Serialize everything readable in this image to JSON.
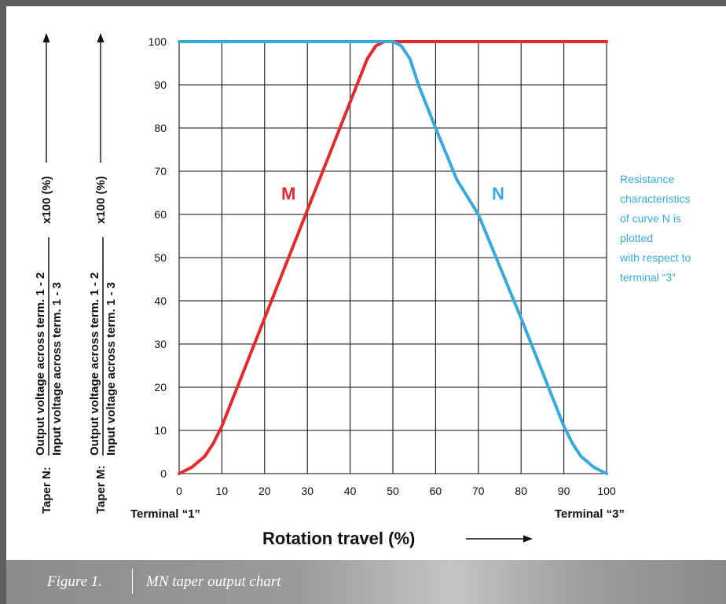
{
  "chart_data": {
    "type": "line",
    "xlim": [
      0,
      100
    ],
    "ylim": [
      0,
      100
    ],
    "xticks": [
      0,
      10,
      20,
      30,
      40,
      50,
      60,
      70,
      80,
      90,
      100
    ],
    "yticks": [
      0,
      10,
      20,
      30,
      40,
      50,
      60,
      70,
      80,
      90,
      100
    ],
    "grid": true,
    "xlabel": "Rotation travel (%)",
    "x_start_label": "Terminal “1”",
    "x_end_label": "Terminal “3”",
    "ylabels": [
      {
        "prefix": "Taper N:",
        "numerator": "Output voltage across term. 1 - 2",
        "denominator": "Input voltage across term. 1 - 3",
        "suffix": "x100 (%)"
      },
      {
        "prefix": "Taper M:",
        "numerator": "Output voltage across term. 1 - 2",
        "denominator": "Input voltage across term. 1 - 3",
        "suffix": "x100 (%)"
      }
    ],
    "series": [
      {
        "name": "M",
        "color": "#e02b2f",
        "x": [
          0,
          3,
          6,
          8,
          10,
          15,
          20,
          25,
          30,
          35,
          40,
          44,
          46,
          48,
          50,
          55,
          60,
          70,
          80,
          90,
          100
        ],
        "y": [
          0,
          1.5,
          4,
          7,
          11,
          23.5,
          36,
          48.5,
          61,
          73.5,
          86,
          96,
          99,
          100,
          100,
          100,
          100,
          100,
          100,
          100,
          100
        ]
      },
      {
        "name": "N",
        "color": "#39a9dc",
        "x": [
          0,
          10,
          20,
          30,
          40,
          50,
          52,
          54,
          56,
          60,
          65,
          70,
          75,
          80,
          85,
          90,
          92,
          94,
          97,
          100
        ],
        "y": [
          100,
          100,
          100,
          100,
          100,
          100,
          99,
          96,
          90,
          80,
          68,
          60,
          48,
          36,
          23.5,
          11,
          7,
          4,
          1.5,
          0
        ]
      }
    ],
    "annotation": {
      "lines": [
        "Resistance",
        "characteristics",
        "of curve N is",
        "plotted",
        "with respect to",
        "terminal “3”"
      ],
      "color": "#39a9dc"
    }
  },
  "caption": {
    "label": "Figure 1.",
    "text": "MN taper output chart"
  }
}
